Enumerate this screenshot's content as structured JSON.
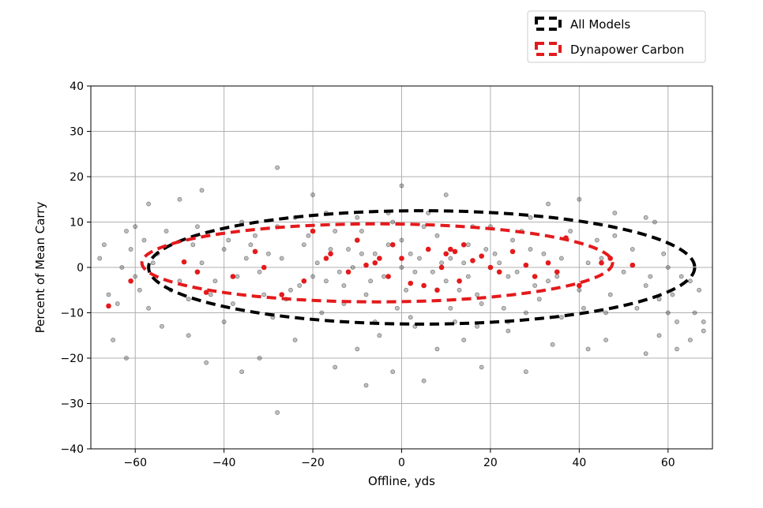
{
  "chart_data": {
    "type": "scatter",
    "title": "",
    "xlabel": "Offline, yds",
    "ylabel": "Percent of Mean Carry",
    "xlim": [
      -70,
      70
    ],
    "ylim": [
      -40,
      40
    ],
    "xticks": [
      -60,
      -40,
      -20,
      0,
      20,
      40,
      60
    ],
    "yticks": [
      -40,
      -30,
      -20,
      -10,
      0,
      10,
      20,
      30,
      40
    ],
    "xtick_labels": [
      "−60",
      "−40",
      "−20",
      "0",
      "20",
      "40",
      "60"
    ],
    "ytick_labels": [
      "−40",
      "−30",
      "−20",
      "−10",
      "0",
      "10",
      "20",
      "30",
      "40"
    ],
    "grid": true,
    "legend": {
      "placement": "top-right",
      "entries": [
        {
          "label": "All Models",
          "color": "#000000"
        },
        {
          "label": "Dynapower Carbon",
          "color": "#e41a1c"
        }
      ]
    },
    "series": [
      {
        "name": "All Models",
        "color": "#000000",
        "opacity": 0.25,
        "points": [
          [
            -5,
            2
          ],
          [
            3,
            -1
          ],
          [
            -12,
            4
          ],
          [
            10,
            -3
          ],
          [
            15,
            5
          ],
          [
            -20,
            -2
          ],
          [
            22,
            1
          ],
          [
            -30,
            3
          ],
          [
            30,
            -4
          ],
          [
            0,
            6
          ],
          [
            -8,
            -6
          ],
          [
            8,
            7
          ],
          [
            -15,
            8
          ],
          [
            18,
            -8
          ],
          [
            -25,
            -5
          ],
          [
            25,
            6
          ],
          [
            -35,
            2
          ],
          [
            35,
            -2
          ],
          [
            -40,
            4
          ],
          [
            40,
            -5
          ],
          [
            -45,
            1
          ],
          [
            45,
            2
          ],
          [
            -50,
            -3
          ],
          [
            50,
            -1
          ],
          [
            -55,
            3
          ],
          [
            55,
            -4
          ],
          [
            -60,
            -2
          ],
          [
            60,
            0
          ],
          [
            -64,
            -8
          ],
          [
            65,
            -3
          ],
          [
            -2,
            10
          ],
          [
            2,
            -11
          ],
          [
            -10,
            11
          ],
          [
            12,
            -12
          ],
          [
            -18,
            -10
          ],
          [
            20,
            9
          ],
          [
            -28,
            9
          ],
          [
            28,
            -10
          ],
          [
            -38,
            -8
          ],
          [
            38,
            8
          ],
          [
            -48,
            -7
          ],
          [
            48,
            7
          ],
          [
            -58,
            6
          ],
          [
            58,
            -7
          ],
          [
            -62,
            8
          ],
          [
            62,
            -12
          ],
          [
            -66,
            -6
          ],
          [
            66,
            -10
          ],
          [
            -68,
            2
          ],
          [
            68,
            -14
          ],
          [
            -28,
            22
          ],
          [
            -28,
            -32
          ],
          [
            -8,
            -26
          ],
          [
            -2,
            -23
          ],
          [
            5,
            -25
          ],
          [
            18,
            -22
          ],
          [
            28,
            -23
          ],
          [
            42,
            -18
          ],
          [
            -44,
            -21
          ],
          [
            -36,
            -23
          ],
          [
            -45,
            17
          ],
          [
            -50,
            15
          ],
          [
            -57,
            14
          ],
          [
            0,
            18
          ],
          [
            -20,
            16
          ],
          [
            10,
            16
          ],
          [
            33,
            14
          ],
          [
            40,
            15
          ],
          [
            48,
            12
          ],
          [
            55,
            11
          ],
          [
            -65,
            -16
          ],
          [
            -62,
            -20
          ],
          [
            -54,
            -13
          ],
          [
            -48,
            -15
          ],
          [
            -40,
            -12
          ],
          [
            58,
            -15
          ],
          [
            62,
            -18
          ],
          [
            65,
            -16
          ],
          [
            68,
            -12
          ],
          [
            55,
            -19
          ],
          [
            -32,
            -20
          ],
          [
            -15,
            -22
          ],
          [
            8,
            -18
          ],
          [
            -5,
            -15
          ],
          [
            14,
            -16
          ],
          [
            24,
            -14
          ],
          [
            34,
            -17
          ],
          [
            46,
            -16
          ],
          [
            -24,
            -16
          ],
          [
            -10,
            -18
          ],
          [
            -6,
            3
          ],
          [
            4,
            2
          ],
          [
            -14,
            -1
          ],
          [
            14,
            1
          ],
          [
            -22,
            5
          ],
          [
            24,
            -2
          ],
          [
            -32,
            -1
          ],
          [
            32,
            3
          ],
          [
            -42,
            -3
          ],
          [
            42,
            1
          ],
          [
            1,
            -5
          ],
          [
            -3,
            5
          ],
          [
            6,
            4
          ],
          [
            -7,
            -3
          ],
          [
            9,
            1
          ],
          [
            -11,
            0
          ],
          [
            13,
            -5
          ],
          [
            -16,
            4
          ],
          [
            17,
            -6
          ],
          [
            -19,
            1
          ],
          [
            21,
            3
          ],
          [
            -23,
            -4
          ],
          [
            26,
            -1
          ],
          [
            -27,
            2
          ],
          [
            29,
            4
          ],
          [
            -31,
            -6
          ],
          [
            33,
            -3
          ],
          [
            -34,
            5
          ],
          [
            36,
            2
          ],
          [
            -37,
            -2
          ],
          [
            -1,
            -9
          ],
          [
            5,
            9
          ],
          [
            -9,
            8
          ],
          [
            11,
            -9
          ],
          [
            -13,
            -8
          ],
          [
            16,
            9
          ],
          [
            -21,
            7
          ],
          [
            23,
            -9
          ],
          [
            -26,
            -7
          ],
          [
            27,
            8
          ],
          [
            -33,
            7
          ],
          [
            31,
            -7
          ],
          [
            -39,
            6
          ],
          [
            41,
            -9
          ],
          [
            -43,
            -6
          ],
          [
            44,
            6
          ],
          [
            -47,
            5
          ],
          [
            47,
            -6
          ],
          [
            -52,
            -5
          ],
          [
            52,
            4
          ],
          [
            -56,
            1
          ],
          [
            56,
            -2
          ],
          [
            -59,
            -5
          ],
          [
            59,
            3
          ],
          [
            -61,
            4
          ],
          [
            61,
            -6
          ],
          [
            -63,
            0
          ],
          [
            63,
            -2
          ],
          [
            -67,
            5
          ],
          [
            67,
            -5
          ],
          [
            0,
            0
          ],
          [
            2,
            3
          ],
          [
            -4,
            -2
          ],
          [
            7,
            -1
          ],
          [
            -9,
            3
          ],
          [
            11,
            2
          ],
          [
            -13,
            -4
          ],
          [
            15,
            -2
          ],
          [
            -17,
            -3
          ],
          [
            19,
            4
          ],
          [
            -3,
            12
          ],
          [
            3,
            -13
          ],
          [
            -17,
            12
          ],
          [
            17,
            -13
          ],
          [
            -24,
            11
          ],
          [
            24,
            -12
          ],
          [
            -36,
            10
          ],
          [
            36,
            -11
          ],
          [
            -46,
            9
          ],
          [
            46,
            -10
          ],
          [
            -53,
            8
          ],
          [
            53,
            -9
          ],
          [
            -57,
            -9
          ],
          [
            57,
            10
          ],
          [
            -60,
            9
          ],
          [
            60,
            -10
          ],
          [
            -6,
            -12
          ],
          [
            6,
            12
          ],
          [
            -29,
            -11
          ],
          [
            29,
            11
          ]
        ]
      },
      {
        "name": "Dynapower Carbon",
        "color": "#e41a1c",
        "opacity": 1,
        "points": [
          [
            -66,
            -8.5
          ],
          [
            -61,
            -3
          ],
          [
            -49,
            1.2
          ],
          [
            -46,
            -1
          ],
          [
            -44,
            -5.5
          ],
          [
            -33,
            3.5
          ],
          [
            -31,
            0
          ],
          [
            -27,
            -6
          ],
          [
            -20,
            8
          ],
          [
            -17,
            2
          ],
          [
            -16,
            3
          ],
          [
            -12,
            -1
          ],
          [
            -8,
            0.5
          ],
          [
            -6,
            1
          ],
          [
            -5,
            2
          ],
          [
            -3,
            -2
          ],
          [
            0,
            2
          ],
          [
            2,
            -3.5
          ],
          [
            5,
            -4
          ],
          [
            6,
            4
          ],
          [
            9,
            0
          ],
          [
            10,
            3
          ],
          [
            11,
            4
          ],
          [
            12,
            3.5
          ],
          [
            13,
            -3
          ],
          [
            16,
            1.5
          ],
          [
            18,
            2.5
          ],
          [
            20,
            0
          ],
          [
            22,
            -1
          ],
          [
            25,
            3.5
          ],
          [
            28,
            0.5
          ],
          [
            33,
            1
          ],
          [
            35,
            -1
          ],
          [
            40,
            -4
          ],
          [
            45,
            1
          ],
          [
            47,
            2
          ],
          [
            52,
            0.5
          ],
          [
            -38,
            -2
          ],
          [
            -10,
            6
          ],
          [
            14,
            5
          ],
          [
            -22,
            -3
          ],
          [
            30,
            -2
          ],
          [
            -2,
            5
          ],
          [
            8,
            -5
          ],
          [
            37,
            6.5
          ]
        ]
      }
    ],
    "ellipses": [
      {
        "series": "All Models",
        "color": "#000000",
        "cx": 4.5,
        "cy": 0,
        "rx": 61.5,
        "ry": 12.5
      },
      {
        "series": "Dynapower Carbon",
        "color": "#e41a1c",
        "cx": -5.5,
        "cy": 1,
        "rx": 53,
        "ry": 8.6
      }
    ]
  }
}
